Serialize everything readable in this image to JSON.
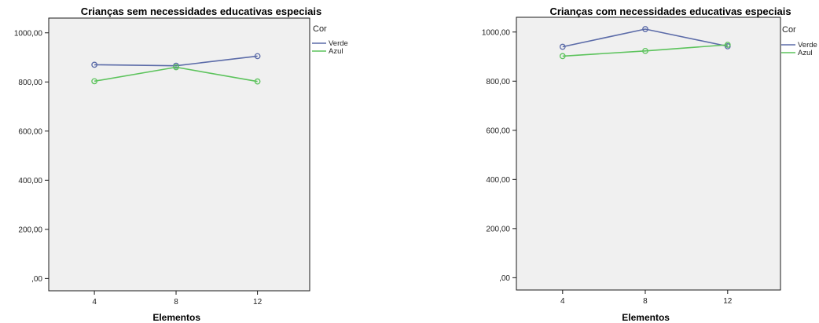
{
  "chart_data": [
    {
      "type": "line",
      "title": "Crianças sem necessidades educativas especiais",
      "xlabel": "Elementos",
      "ylabel": "",
      "categories": [
        "4",
        "8",
        "12"
      ],
      "yticks": [
        ",00",
        "200,00",
        "400,00",
        "600,00",
        "800,00",
        "1000,00"
      ],
      "ylim": [
        -50,
        1060
      ],
      "grid": false,
      "legend": {
        "title": "Cor",
        "placement": "top-right"
      },
      "series": [
        {
          "name": "Verde",
          "color": "#5b6ba8",
          "values": [
            870,
            866,
            905
          ]
        },
        {
          "name": "Azul",
          "color": "#5cc35c",
          "values": [
            803,
            860,
            802
          ]
        }
      ]
    },
    {
      "type": "line",
      "title": "Crianças com necessidades educativas especiais",
      "xlabel": "Elementos",
      "ylabel": "",
      "categories": [
        "4",
        "8",
        "12"
      ],
      "yticks": [
        ",00",
        "200,00",
        "400,00",
        "600,00",
        "800,00",
        "1000,00"
      ],
      "ylim": [
        -50,
        1060
      ],
      "grid": false,
      "legend": {
        "title": "Cor",
        "placement": "top-right"
      },
      "series": [
        {
          "name": "Verde",
          "color": "#5b6ba8",
          "values": [
            940,
            1012,
            942
          ]
        },
        {
          "name": "Azul",
          "color": "#5cc35c",
          "values": [
            902,
            923,
            948
          ]
        }
      ]
    }
  ]
}
